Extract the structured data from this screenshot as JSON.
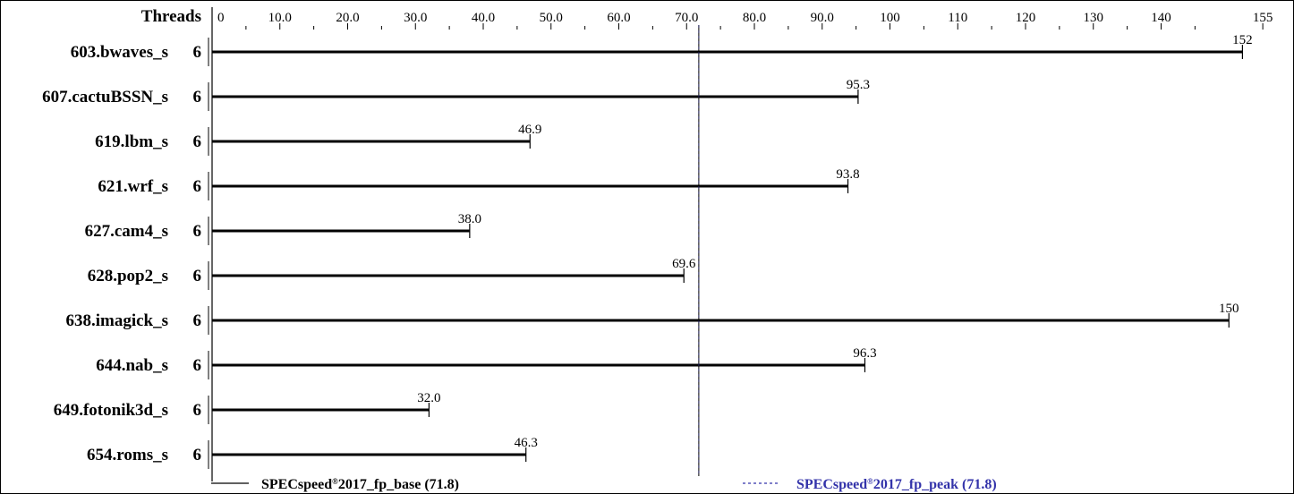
{
  "chart_data": {
    "type": "bar",
    "orientation": "horizontal",
    "threads_header": "Threads",
    "x_ticks": [
      "0",
      "10.0",
      "20.0",
      "30.0",
      "40.0",
      "50.0",
      "60.0",
      "70.0",
      "80.0",
      "90.0",
      "100",
      "110",
      "120",
      "130",
      "140",
      "155"
    ],
    "xlim": [
      0,
      155
    ],
    "grid": false,
    "benchmarks": [
      {
        "name": "603.bwaves_s",
        "threads": "6",
        "value": 152,
        "label": "152"
      },
      {
        "name": "607.cactuBSSN_s",
        "threads": "6",
        "value": 95.3,
        "label": "95.3"
      },
      {
        "name": "619.lbm_s",
        "threads": "6",
        "value": 46.9,
        "label": "46.9"
      },
      {
        "name": "621.wrf_s",
        "threads": "6",
        "value": 93.8,
        "label": "93.8"
      },
      {
        "name": "627.cam4_s",
        "threads": "6",
        "value": 38.0,
        "label": "38.0"
      },
      {
        "name": "628.pop2_s",
        "threads": "6",
        "value": 69.6,
        "label": "69.6"
      },
      {
        "name": "638.imagick_s",
        "threads": "6",
        "value": 150,
        "label": "150"
      },
      {
        "name": "644.nab_s",
        "threads": "6",
        "value": 96.3,
        "label": "96.3"
      },
      {
        "name": "649.fotonik3d_s",
        "threads": "6",
        "value": 32.0,
        "label": "32.0"
      },
      {
        "name": "654.roms_s",
        "threads": "6",
        "value": 46.3,
        "label": "46.3"
      }
    ],
    "base_mean": 71.8,
    "peak_mean": 71.8,
    "legend": {
      "placement": "bottom",
      "base": {
        "prefix": "SPECspeed",
        "mark": "®",
        "suffix": "2017_fp_base (71.8)",
        "color": "#000000"
      },
      "peak": {
        "prefix": "SPECspeed",
        "mark": "®",
        "suffix": "2017_fp_peak (71.8)",
        "color": "#3333aa"
      }
    }
  }
}
